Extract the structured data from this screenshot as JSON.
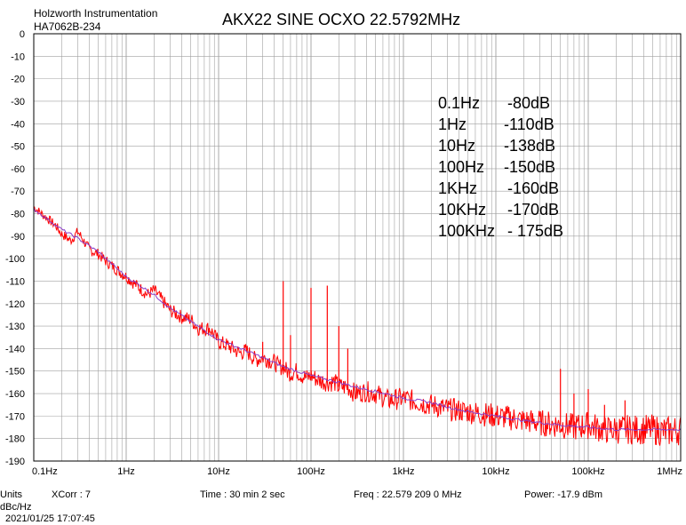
{
  "header": {
    "company": "Holzworth Instrumentation",
    "model": "HA7062B-234",
    "title": "AKX22 SINE OCXO 22.5792MHz"
  },
  "annotations": [
    {
      "offset": "0.1Hz",
      "level": "-80dB"
    },
    {
      "offset": "1Hz",
      "level": "-110dB"
    },
    {
      "offset": "10Hz",
      "level": "-138dB"
    },
    {
      "offset": "100Hz",
      "level": "-150dB"
    },
    {
      "offset": "1KHz",
      "level": "-160dB"
    },
    {
      "offset": "10KHz",
      "level": "-170dB"
    },
    {
      "offset": "100KHz",
      "level": "- 175dB"
    }
  ],
  "footer": {
    "units_label": "Units",
    "units_value": "dBc/Hz",
    "xcorr": "XCorr : 7",
    "time": "Time : 30 min 2 sec",
    "freq": "Freq : 22.579 209 0 MHz",
    "power": "Power: -17.9 dBm",
    "timestamp": "2021/01/25 17:07:45"
  },
  "colors": {
    "raw_trace": "#ff0000",
    "smoothed_trace": "#8a3cc8",
    "grid": "#a0a0a0"
  },
  "chart_data": {
    "type": "line",
    "xscale": "log",
    "xlim": [
      0.1,
      1000000
    ],
    "ylim": [
      -190,
      0
    ],
    "grid": true,
    "y_ticks": [
      0,
      -10,
      -20,
      -30,
      -40,
      -50,
      -60,
      -70,
      -80,
      -90,
      -100,
      -110,
      -120,
      -130,
      -140,
      -150,
      -160,
      -170,
      -180,
      -190
    ],
    "x_ticks": [
      {
        "value": 0.1,
        "label": "0.1Hz"
      },
      {
        "value": 1,
        "label": "1Hz"
      },
      {
        "value": 10,
        "label": "10Hz"
      },
      {
        "value": 100,
        "label": "100Hz"
      },
      {
        "value": 1000,
        "label": "1kHz"
      },
      {
        "value": 10000,
        "label": "10kHz"
      },
      {
        "value": 100000,
        "label": "100kHz"
      },
      {
        "value": 1000000,
        "label": "1MHz"
      }
    ],
    "series": [
      {
        "role": "measured",
        "color": "#ff0000",
        "x": [
          0.1,
          0.13,
          0.17,
          0.2,
          0.25,
          0.3,
          0.4,
          0.5,
          0.6,
          0.8,
          1,
          1.3,
          1.7,
          2,
          3,
          4,
          5,
          6,
          8,
          10,
          13,
          17,
          20,
          25,
          30,
          40,
          45,
          50,
          55,
          60,
          70,
          80,
          90,
          100,
          120,
          150,
          180,
          200,
          250,
          300,
          400,
          500,
          700,
          1000,
          1500,
          2000,
          3000,
          5000,
          7000,
          10000,
          15000,
          20000,
          30000,
          50000,
          70000,
          100000,
          150000,
          200000,
          300000,
          500000,
          700000,
          1000000
        ],
        "y": [
          -77,
          -81,
          -85,
          -89,
          -92,
          -88,
          -96,
          -98,
          -101,
          -105,
          -108,
          -112,
          -116,
          -114,
          -123,
          -126,
          -127,
          -131,
          -131,
          -137,
          -139,
          -142,
          -141,
          -145,
          -144,
          -146,
          -148,
          -148,
          -150,
          -151,
          -150,
          -152,
          -153,
          -152,
          -154,
          -155,
          -155,
          -157,
          -157,
          -160,
          -159,
          -160,
          -163,
          -162,
          -164,
          -165,
          -167,
          -168,
          -169,
          -170,
          -171,
          -172,
          -173,
          -174,
          -175,
          -174,
          -176,
          -176,
          -176,
          -176,
          -177,
          -176
        ]
      },
      {
        "role": "smoothed",
        "color": "#8a3cc8",
        "x": [
          0.1,
          0.2,
          0.3,
          0.5,
          1,
          2,
          3,
          5,
          10,
          20,
          30,
          50,
          100,
          200,
          300,
          500,
          1000,
          2000,
          3000,
          5000,
          10000,
          20000,
          50000,
          100000,
          200000,
          500000,
          1000000
        ],
        "y": [
          -78,
          -87,
          -91,
          -97,
          -108,
          -116,
          -122,
          -128,
          -136,
          -141,
          -144,
          -148,
          -152,
          -155,
          -157,
          -159,
          -162,
          -164,
          -166,
          -168,
          -170,
          -172,
          -174,
          -175,
          -176,
          -176,
          -176
        ]
      }
    ],
    "spurs": [
      {
        "x": 50,
        "y": -110
      },
      {
        "x": 100,
        "y": -113
      },
      {
        "x": 150,
        "y": -112
      },
      {
        "x": 200,
        "y": -130
      },
      {
        "x": 250,
        "y": -140
      },
      {
        "x": 30,
        "y": -137
      },
      {
        "x": 60,
        "y": -134
      },
      {
        "x": 70000,
        "y": -160
      },
      {
        "x": 100000,
        "y": -158
      },
      {
        "x": 150000,
        "y": -165
      },
      {
        "x": 250000,
        "y": -163
      },
      {
        "x": 50000,
        "y": -149
      }
    ]
  }
}
